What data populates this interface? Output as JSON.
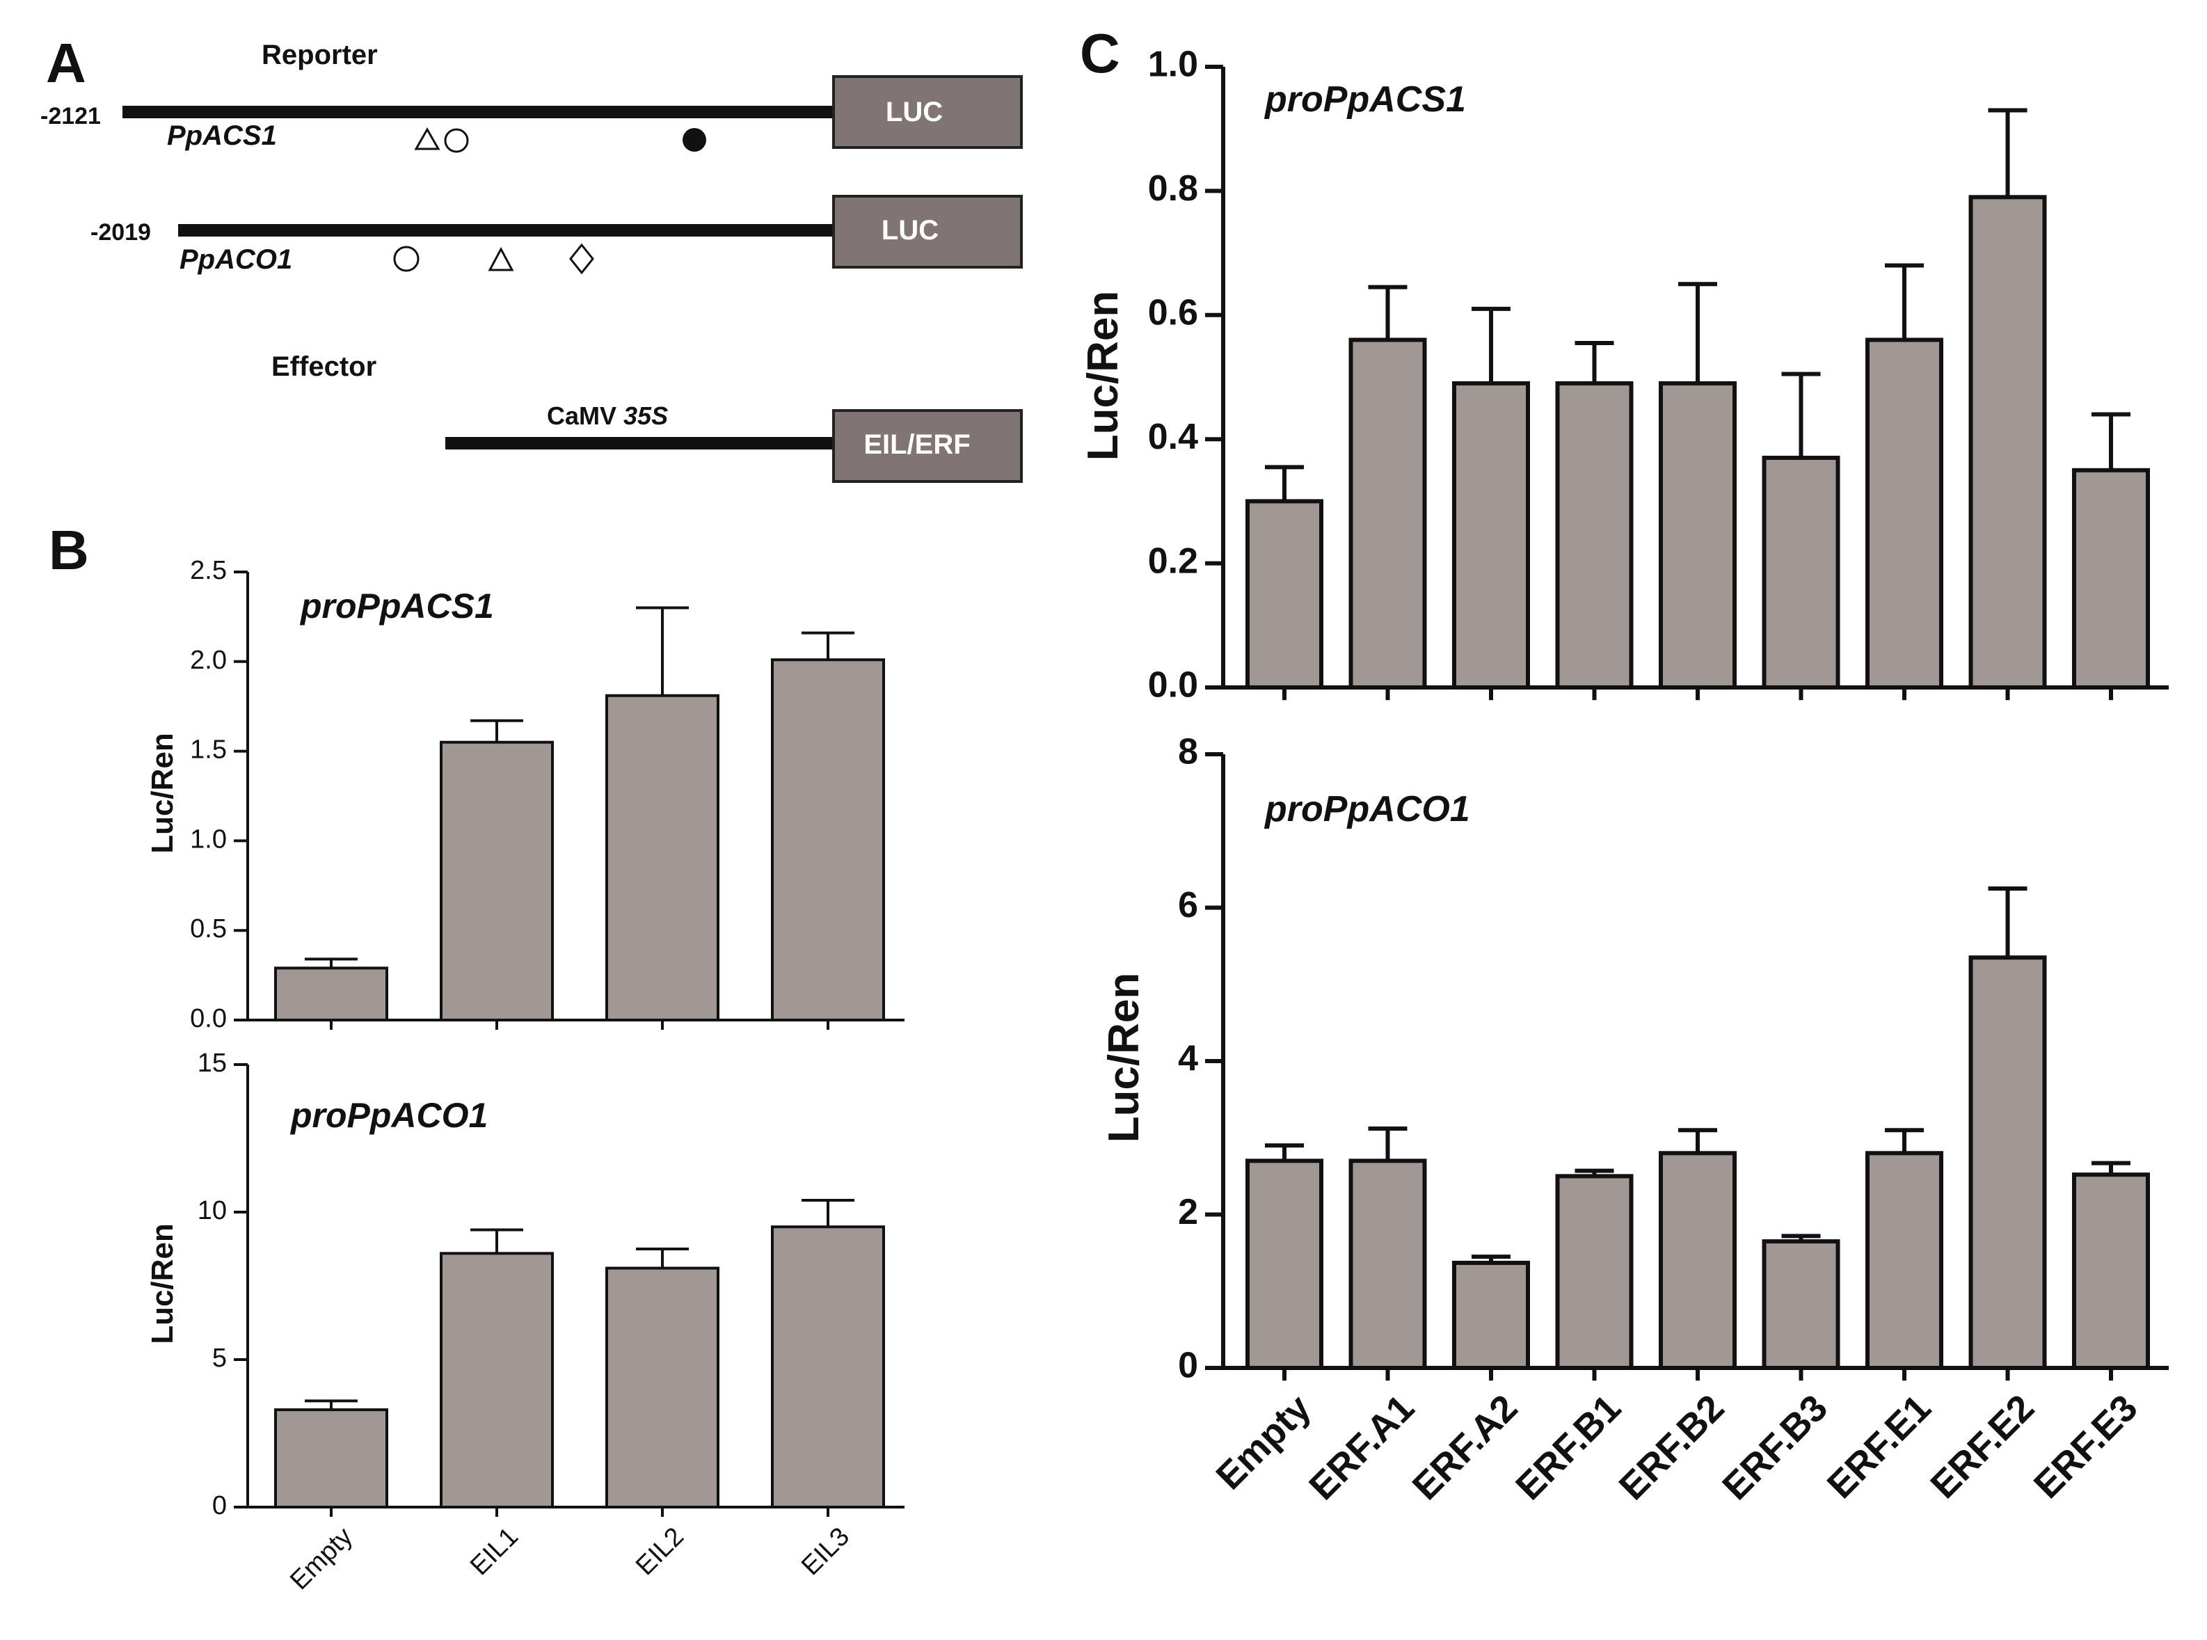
{
  "colors": {
    "bar": "#a19896",
    "box": "#807574",
    "axis": "#111111"
  },
  "panel_a": {
    "letter": "A",
    "reporter_label": "Reporter",
    "effector_label": "Effector",
    "acs": {
      "coord": "-2121",
      "gene": "PpACS1",
      "box": "LUC"
    },
    "aco": {
      "coord": "-2019",
      "gene": "PpACO1",
      "box": "LUC"
    },
    "effector": {
      "promoter_prefix": "CaMV ",
      "promoter_italic": "35S",
      "box": "EIL/ERF"
    }
  },
  "panel_b_letter": "B",
  "panel_c_letter": "C",
  "chart_data": [
    {
      "type": "bar",
      "panel": "B-top",
      "title": "proPpACS1",
      "xlabel": "",
      "ylabel": "Luc/Ren",
      "ylim": [
        0,
        2.5
      ],
      "yticks": [
        "0.0",
        "0.5",
        "1.0",
        "1.5",
        "2.0",
        "2.5"
      ],
      "categories": [
        "Empty",
        "EIL1",
        "EIL2",
        "EIL3"
      ],
      "values": [
        0.29,
        1.55,
        1.81,
        2.01
      ],
      "errors": [
        0.05,
        0.12,
        0.49,
        0.15
      ],
      "show_xlabels": false
    },
    {
      "type": "bar",
      "panel": "B-bottom",
      "title": "proPpACO1",
      "xlabel": "",
      "ylabel": "Luc/Ren",
      "ylim": [
        0,
        15
      ],
      "yticks": [
        "0",
        "5",
        "10",
        "15"
      ],
      "categories": [
        "Empty",
        "EIL1",
        "EIL2",
        "EIL3"
      ],
      "values": [
        3.3,
        8.6,
        8.1,
        9.5
      ],
      "errors": [
        0.3,
        0.8,
        0.65,
        0.9
      ],
      "show_xlabels": true
    },
    {
      "type": "bar",
      "panel": "C-top",
      "title": "proPpACS1",
      "xlabel": "",
      "ylabel": "Luc/Ren",
      "ylim": [
        0,
        1.0
      ],
      "yticks": [
        "0.0",
        "0.2",
        "0.4",
        "0.6",
        "0.8",
        "1.0"
      ],
      "categories": [
        "Empty",
        "ERF.A1",
        "ERF.A2",
        "ERF.B1",
        "ERF.B2",
        "ERF.B3",
        "ERF.E1",
        "ERF.E2",
        "ERF.E3"
      ],
      "values": [
        0.3,
        0.56,
        0.49,
        0.49,
        0.49,
        0.37,
        0.56,
        0.79,
        0.35
      ],
      "errors": [
        0.055,
        0.085,
        0.12,
        0.065,
        0.16,
        0.135,
        0.12,
        0.14,
        0.09
      ],
      "show_xlabels": false
    },
    {
      "type": "bar",
      "panel": "C-bottom",
      "title": "proPpACO1",
      "xlabel": "",
      "ylabel": "Luc/Ren",
      "ylim": [
        0,
        8
      ],
      "yticks": [
        "0",
        "2",
        "4",
        "6",
        "8"
      ],
      "categories": [
        "Empty",
        "ERF.A1",
        "ERF.A2",
        "ERF.B1",
        "ERF.B2",
        "ERF.B3",
        "ERF.E1",
        "ERF.E2",
        "ERF.E3"
      ],
      "values": [
        2.7,
        2.7,
        1.37,
        2.5,
        2.8,
        1.65,
        2.8,
        5.35,
        2.52
      ],
      "errors": [
        0.2,
        0.42,
        0.08,
        0.07,
        0.3,
        0.07,
        0.3,
        0.9,
        0.15
      ],
      "show_xlabels": true
    }
  ]
}
